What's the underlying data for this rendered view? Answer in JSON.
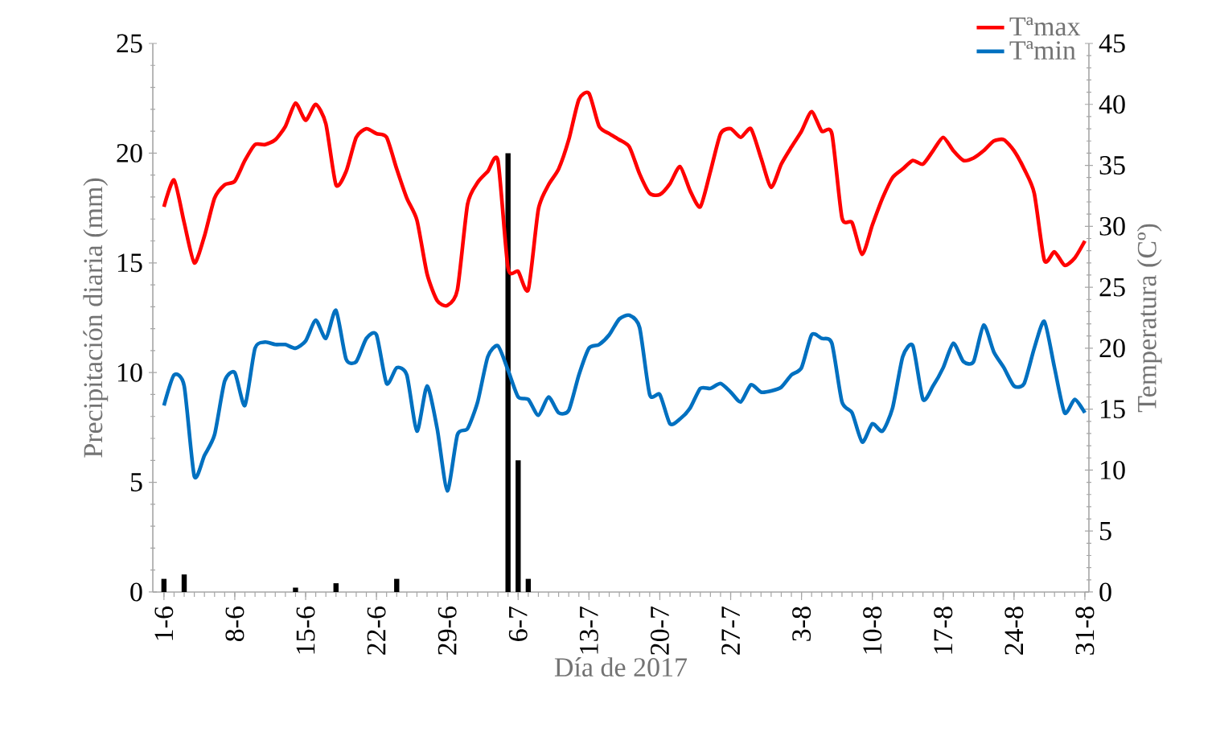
{
  "chart_data": {
    "type": "bar",
    "xlabel": "Día de 2017",
    "ylabel": "Precipitación diaria (mm)",
    "y2label": "Temperatura (Cº)",
    "categories": [
      "1-6",
      null,
      null,
      null,
      null,
      null,
      null,
      "8-6",
      null,
      null,
      null,
      null,
      null,
      null,
      "15-6",
      null,
      null,
      null,
      null,
      null,
      null,
      "22-6",
      null,
      null,
      null,
      null,
      null,
      null,
      "29-6",
      null,
      null,
      null,
      null,
      null,
      null,
      "6-7",
      null,
      null,
      null,
      null,
      null,
      null,
      "13-7",
      null,
      null,
      null,
      null,
      null,
      null,
      "20-7",
      null,
      null,
      null,
      null,
      null,
      null,
      "27-7",
      null,
      null,
      null,
      null,
      null,
      null,
      "3-8",
      null,
      null,
      null,
      null,
      null,
      null,
      "10-8",
      null,
      null,
      null,
      null,
      null,
      null,
      "17-8",
      null,
      null,
      null,
      null,
      null,
      null,
      "24-8",
      null,
      null,
      null,
      null,
      null,
      null,
      "31-8"
    ],
    "series": [
      {
        "color": "#000000",
        "values": [
          0.6,
          0,
          0.8,
          0,
          0,
          0,
          0,
          0,
          0,
          0,
          0,
          0,
          0,
          0.2,
          0,
          0,
          0,
          0.4,
          0,
          0,
          0,
          0,
          0,
          0.6,
          0,
          0,
          0,
          0,
          0,
          0,
          0,
          0,
          0,
          0,
          20,
          6,
          0.6,
          0,
          0,
          0,
          0,
          0,
          0,
          0,
          0,
          0,
          0,
          0,
          0,
          0,
          0,
          0,
          0,
          0,
          0,
          0,
          0,
          0,
          0,
          0,
          0,
          0,
          0,
          0,
          0,
          0,
          0,
          0,
          0,
          0,
          0,
          0,
          0,
          0,
          0,
          0,
          0,
          0,
          0,
          0,
          0,
          0,
          0,
          0,
          0,
          0,
          0,
          0,
          0,
          0,
          0,
          0
        ]
      },
      {
        "type": "line",
        "name": "Tªmax",
        "axis": "y2",
        "color": "#ff0000",
        "values": [
          31.6,
          33.8,
          30.3,
          27.0,
          29.2,
          32.3,
          33.4,
          33.7,
          35.4,
          36.7,
          36.7,
          37.1,
          38.2,
          40.1,
          38.7,
          40.0,
          38.4,
          33.4,
          34.5,
          37.3,
          38.0,
          37.6,
          37.3,
          34.7,
          32.3,
          30.5,
          26.1,
          23.9,
          23.5,
          24.8,
          31.8,
          33.6,
          34.5,
          35.4,
          26.6,
          26.3,
          24.8,
          31.4,
          33.4,
          34.7,
          37.1,
          40.4,
          40.9,
          38.2,
          37.6,
          37.1,
          36.5,
          34.3,
          32.7,
          32.6,
          33.5,
          34.9,
          32.9,
          31.6,
          34.5,
          37.6,
          38.0,
          37.3,
          38.0,
          35.6,
          33.2,
          35.1,
          36.5,
          37.8,
          39.4,
          37.8,
          37.6,
          30.7,
          30.3,
          27.7,
          30.1,
          32.3,
          34.0,
          34.7,
          35.4,
          35.1,
          36.2,
          37.3,
          36.2,
          35.4,
          35.6,
          36.2,
          37.0,
          37.1,
          36.2,
          34.7,
          32.7,
          27.2,
          27.9,
          26.8,
          27.4,
          28.8
        ]
      },
      {
        "type": "line",
        "name": "Tªmin",
        "axis": "y2",
        "color": "#0070c0",
        "values": [
          15.3,
          17.8,
          16.9,
          9.5,
          11.2,
          12.9,
          17.3,
          18.0,
          15.3,
          20.0,
          20.5,
          20.3,
          20.3,
          20.0,
          20.6,
          22.3,
          20.8,
          23.1,
          19.1,
          18.9,
          20.8,
          21.1,
          17.1,
          18.4,
          17.8,
          13.2,
          16.9,
          13.4,
          8.3,
          12.9,
          13.4,
          15.6,
          19.3,
          20.2,
          18.2,
          16.0,
          15.8,
          14.5,
          16.0,
          14.7,
          14.9,
          17.8,
          20.0,
          20.3,
          21.1,
          22.4,
          22.7,
          21.7,
          16.2,
          16.2,
          13.8,
          14.2,
          15.1,
          16.7,
          16.7,
          17.1,
          16.4,
          15.6,
          17.0,
          16.4,
          16.5,
          16.8,
          17.8,
          18.4,
          21.1,
          20.8,
          20.4,
          15.6,
          14.7,
          12.3,
          13.8,
          13.2,
          15.1,
          19.3,
          20.2,
          15.8,
          16.9,
          18.4,
          20.4,
          18.9,
          18.9,
          21.9,
          19.7,
          18.4,
          16.9,
          17.1,
          20.0,
          22.2,
          18.4,
          14.7,
          15.8,
          14.7
        ]
      }
    ],
    "ylim": [
      0,
      25
    ],
    "yticks": [
      0,
      5,
      10,
      15,
      20,
      25
    ],
    "y2lim": [
      0,
      45
    ],
    "y2ticks": [
      0,
      5,
      10,
      15,
      20,
      25,
      30,
      35,
      40,
      45
    ],
    "legend": "top right"
  }
}
